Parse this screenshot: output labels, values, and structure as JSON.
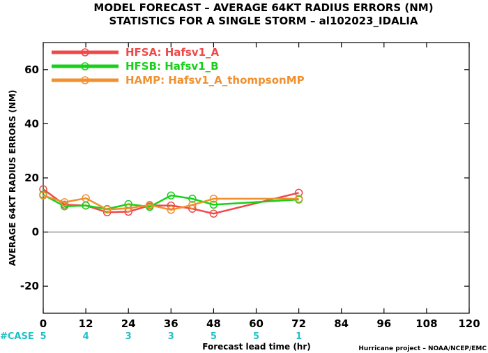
{
  "title_line1": "MODEL FORECAST – AVERAGE 64KT RADIUS ERRORS (NM)",
  "title_line2": "STATISTICS FOR A SINGLE STORM – al102023_IDALIA",
  "case_label": "#CASE",
  "credit": "Hurricane project – NOAA/NCEP/EMC",
  "colors": {
    "case": "#20c0c8",
    "zero_line": "#808080"
  },
  "chart_data": {
    "type": "line",
    "xlabel": "Forecast lead time (hr)",
    "ylabel": "AVERAGE 64KT RADIUS ERRORS (NM)",
    "xlim": [
      0,
      120
    ],
    "ylim": [
      -30,
      70
    ],
    "xticks": [
      0,
      12,
      24,
      36,
      48,
      60,
      72,
      84,
      96,
      108,
      120
    ],
    "yticks": [
      -20,
      0,
      20,
      40,
      60
    ],
    "grid": false,
    "legend_position": "top-left",
    "cases": [
      {
        "x": 0,
        "label": "5"
      },
      {
        "x": 12,
        "label": "4"
      },
      {
        "x": 24,
        "label": "3"
      },
      {
        "x": 36,
        "label": "3"
      },
      {
        "x": 48,
        "label": "5"
      },
      {
        "x": 60,
        "label": "5"
      },
      {
        "x": 72,
        "label": "1"
      }
    ],
    "series": [
      {
        "name": "HFSA: Hafsv1_A",
        "color": "#f04848",
        "x": [
          0,
          6,
          12,
          18,
          24,
          30,
          36,
          42,
          48,
          72
        ],
        "y": [
          15.8,
          10.1,
          9.8,
          7.3,
          7.5,
          9.8,
          9.8,
          8.6,
          6.8,
          14.5
        ]
      },
      {
        "name": "HFSB: Hafsv1_B",
        "color": "#18d018",
        "x": [
          0,
          6,
          12,
          18,
          24,
          30,
          36,
          42,
          48,
          72
        ],
        "y": [
          13.8,
          9.5,
          9.8,
          8.5,
          10.3,
          9.3,
          13.5,
          12.3,
          10.1,
          12.0
        ]
      },
      {
        "name": "HAMP: Hafsv1_A_thompsonMP",
        "color": "#f09030",
        "x": [
          0,
          6,
          12,
          18,
          24,
          30,
          36,
          42,
          48,
          72
        ],
        "y": [
          13.5,
          11.0,
          12.5,
          8.3,
          8.8,
          10.0,
          8.2,
          10.0,
          12.3,
          12.3
        ]
      }
    ]
  }
}
